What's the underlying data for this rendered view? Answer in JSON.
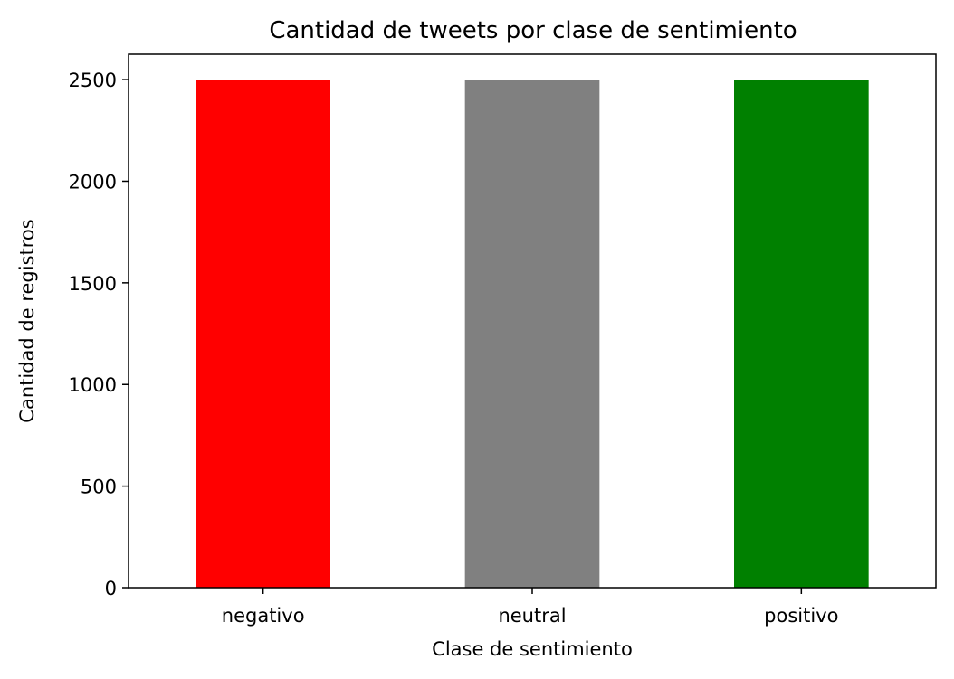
{
  "chart_data": {
    "type": "bar",
    "title": "Cantidad de tweets por clase de sentimiento",
    "xlabel": "Clase de sentimiento",
    "ylabel": "Cantidad de registros",
    "categories": [
      "negativo",
      "neutral",
      "positivo"
    ],
    "values": [
      2500,
      2500,
      2500
    ],
    "colors": [
      "#ff0000",
      "#808080",
      "#008000"
    ],
    "ylim": [
      0,
      2625
    ],
    "yticks": [
      0,
      500,
      1000,
      1500,
      2000,
      2500
    ],
    "grid": false,
    "legend": "none"
  }
}
